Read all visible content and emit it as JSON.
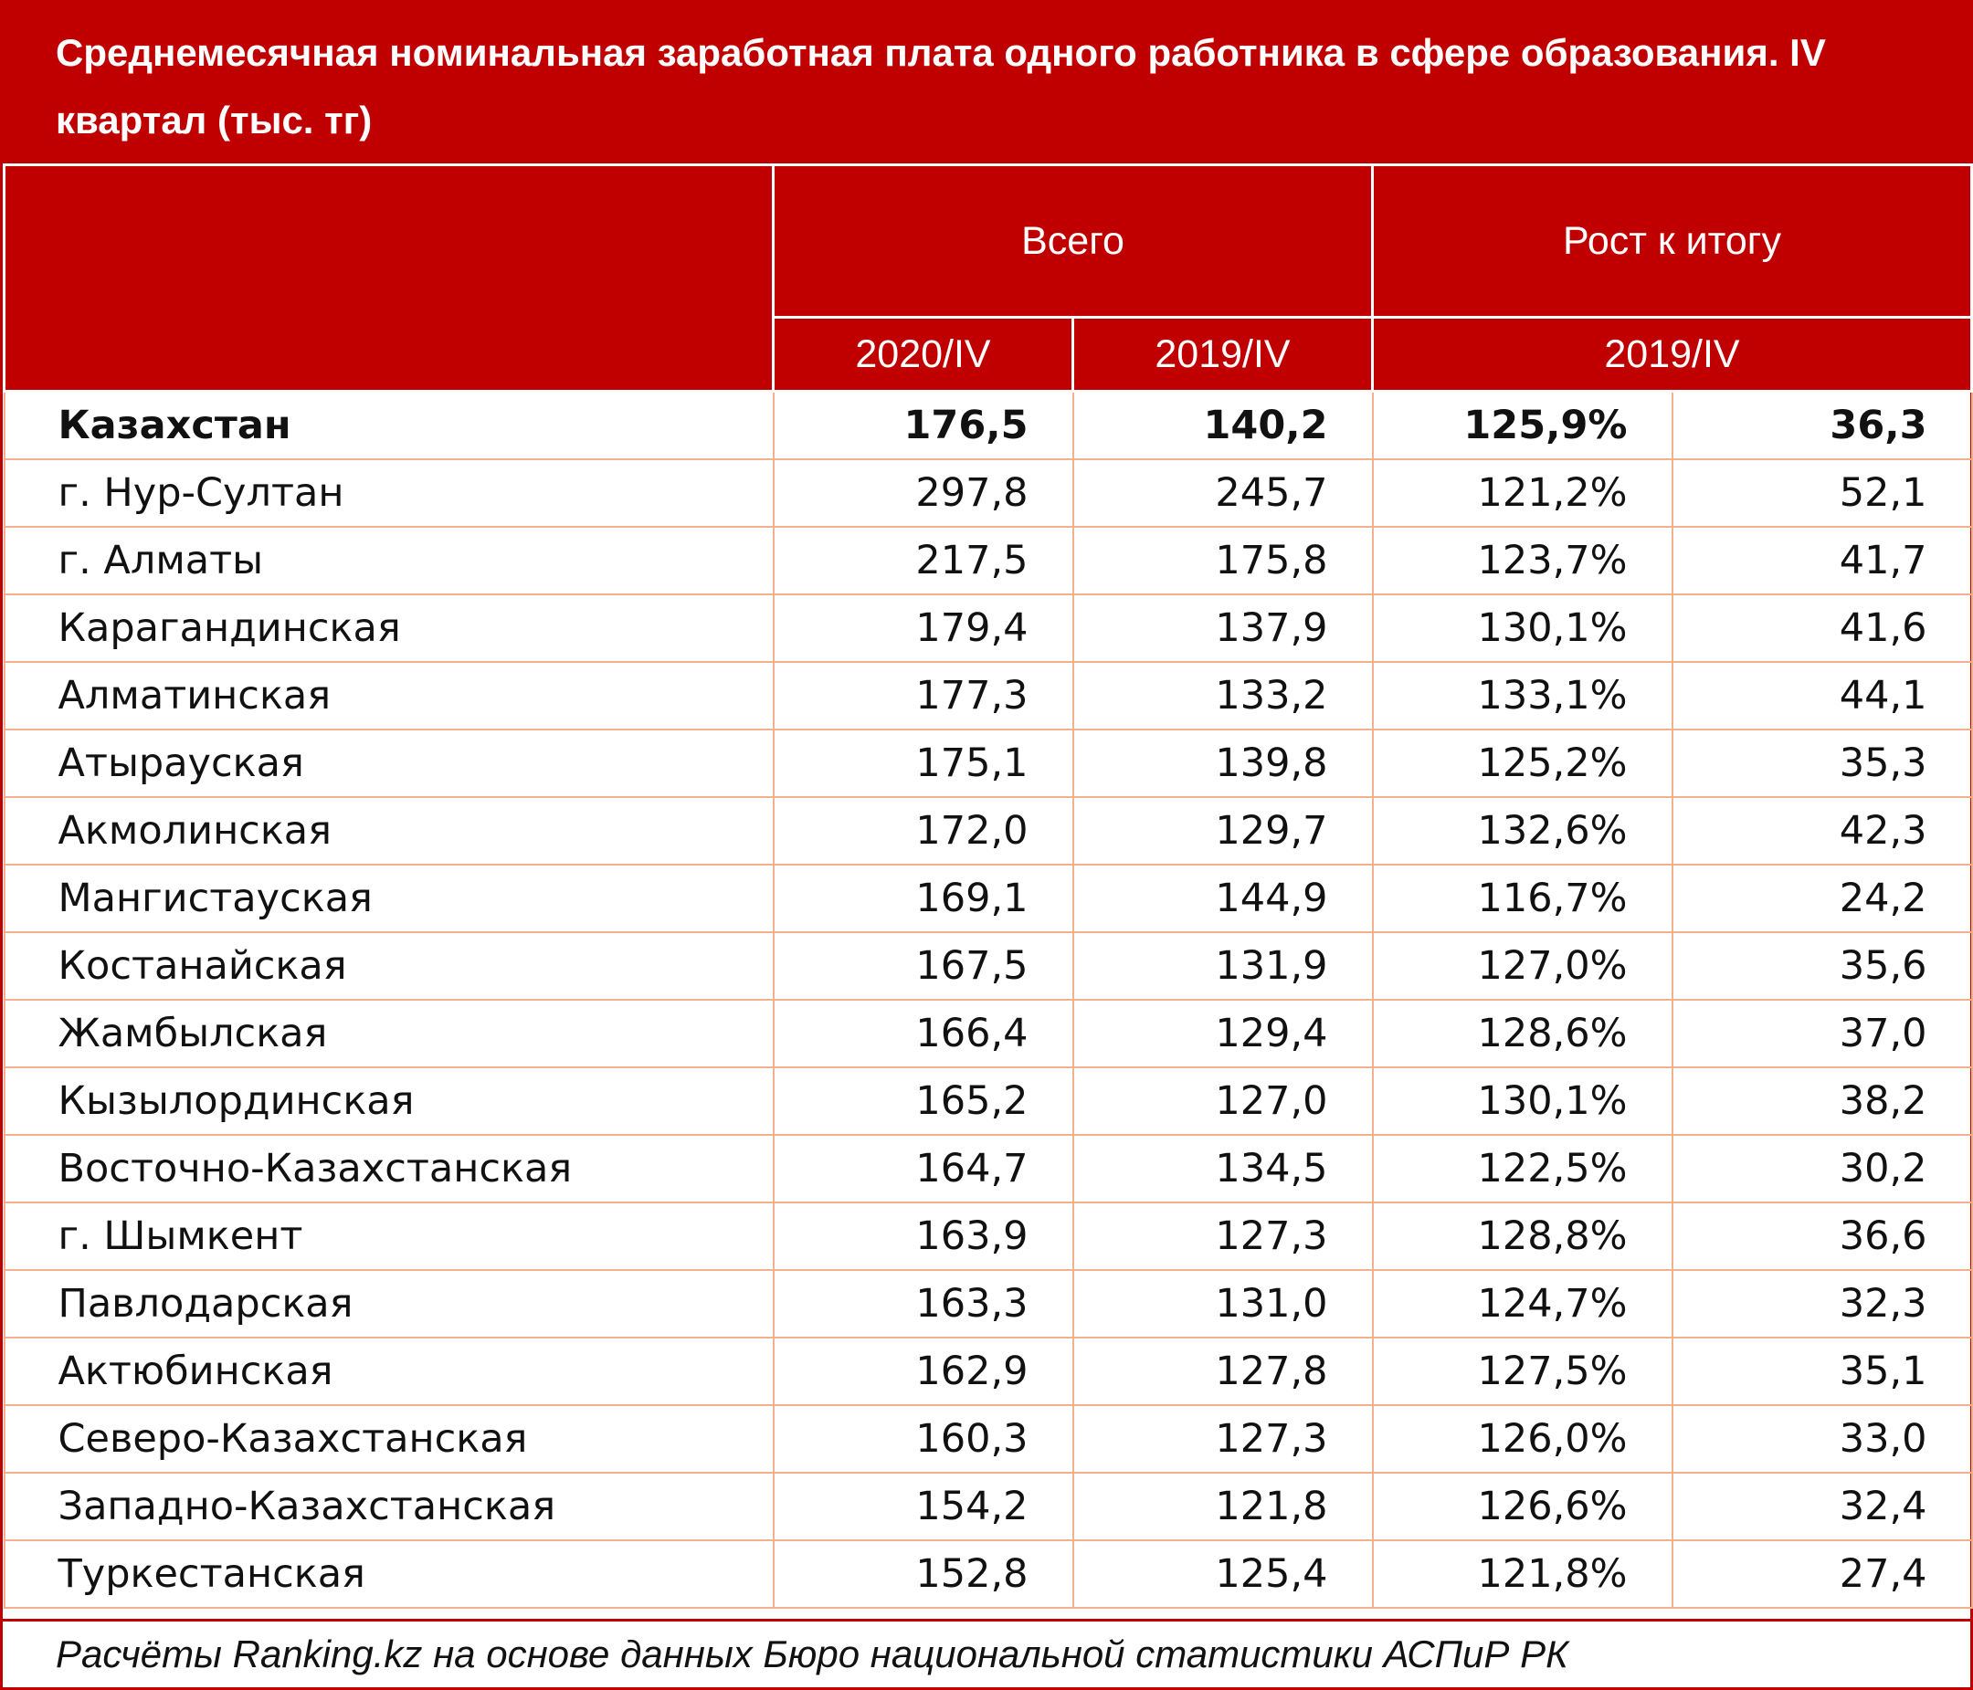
{
  "title": "Среднемесячная номинальная заработная плата одного работника в сфере образования. IV квартал (тыс. тг)",
  "table": {
    "header": {
      "groups": [
        "Всего",
        "Рост к итогу"
      ],
      "sub": [
        "2020/IV",
        "2019/IV",
        "2019/IV"
      ]
    },
    "rows": [
      [
        "Казахстан",
        "176,5",
        "140,2",
        "125,9%",
        "36,3"
      ],
      [
        "г. Нур-Султан",
        "297,8",
        "245,7",
        "121,2%",
        "52,1"
      ],
      [
        "г. Алматы",
        "217,5",
        "175,8",
        "123,7%",
        "41,7"
      ],
      [
        "Карагандинская",
        "179,4",
        "137,9",
        "130,1%",
        "41,6"
      ],
      [
        "Алматинская",
        "177,3",
        "133,2",
        "133,1%",
        "44,1"
      ],
      [
        "Атырауская",
        "175,1",
        "139,8",
        "125,2%",
        "35,3"
      ],
      [
        "Акмолинская",
        "172,0",
        "129,7",
        "132,6%",
        "42,3"
      ],
      [
        "Мангистауская",
        "169,1",
        "144,9",
        "116,7%",
        "24,2"
      ],
      [
        "Костанайская",
        "167,5",
        "131,9",
        "127,0%",
        "35,6"
      ],
      [
        "Жамбылская",
        "166,4",
        "129,4",
        "128,6%",
        "37,0"
      ],
      [
        "Кызылординская",
        "165,2",
        "127,0",
        "130,1%",
        "38,2"
      ],
      [
        "Восточно-Казахстанская",
        "164,7",
        "134,5",
        "122,5%",
        "30,2"
      ],
      [
        "г. Шымкент",
        "163,9",
        "127,3",
        "128,8%",
        "36,6"
      ],
      [
        "Павлодарская",
        "163,3",
        "131,0",
        "124,7%",
        "32,3"
      ],
      [
        "Актюбинская",
        "162,9",
        "127,8",
        "127,5%",
        "35,1"
      ],
      [
        "Северо-Казахстанская",
        "160,3",
        "127,3",
        "126,0%",
        "33,0"
      ],
      [
        "Западно-Казахстанская",
        "154,2",
        "121,8",
        "126,6%",
        "32,4"
      ],
      [
        "Туркестанская",
        "152,8",
        "125,4",
        "121,8%",
        "27,4"
      ]
    ]
  },
  "source": "Расчёты Ranking.kz на основе данных Бюро национальной статистики АСПиР РК"
}
